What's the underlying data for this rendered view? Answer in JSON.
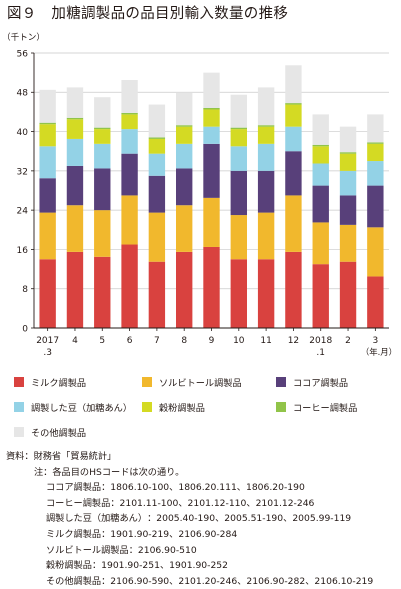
{
  "title": "図９　加糖調製品の品目別輸入数量の推移",
  "chart_data": {
    "type": "bar",
    "stacked": true,
    "unit_label": "（千トン）",
    "period_unit": "（年.月）",
    "ylim": [
      0,
      56
    ],
    "yticks": [
      0,
      8,
      16,
      24,
      32,
      40,
      48,
      56
    ],
    "grid": true,
    "legend_position": "bottom",
    "categories": [
      [
        "2017",
        ".3"
      ],
      [
        "4"
      ],
      [
        "5"
      ],
      [
        "6"
      ],
      [
        "7"
      ],
      [
        "8"
      ],
      [
        "9"
      ],
      [
        "10"
      ],
      [
        "11"
      ],
      [
        "12"
      ],
      [
        "2018",
        ".1"
      ],
      [
        "2"
      ],
      [
        "3"
      ]
    ],
    "series": [
      {
        "name": "ミルク調製品",
        "color": "#d9423f",
        "values": [
          14.0,
          15.5,
          14.5,
          17.0,
          13.5,
          15.5,
          16.5,
          14.0,
          14.0,
          15.5,
          13.0,
          13.5,
          10.5
        ]
      },
      {
        "name": "ソルビトール調製品",
        "color": "#f1b82d",
        "values": [
          9.5,
          9.5,
          9.5,
          10.0,
          10.0,
          9.5,
          10.0,
          9.0,
          9.5,
          11.5,
          8.5,
          7.5,
          10.0
        ]
      },
      {
        "name": "ココア調製品",
        "color": "#58407a",
        "values": [
          7.0,
          8.0,
          8.5,
          8.5,
          7.5,
          7.5,
          11.0,
          9.0,
          8.5,
          9.0,
          7.5,
          6.0,
          8.5
        ]
      },
      {
        "name": "調製した豆（加糖あん）",
        "color": "#93d2e6",
        "values": [
          6.5,
          5.5,
          5.0,
          5.0,
          4.5,
          5.0,
          3.5,
          5.0,
          5.5,
          5.0,
          4.5,
          5.0,
          5.0
        ]
      },
      {
        "name": "穀粉調製品",
        "color": "#d4da23",
        "values": [
          4.5,
          4.0,
          3.0,
          3.0,
          3.0,
          3.5,
          3.5,
          3.5,
          3.5,
          4.5,
          3.5,
          3.5,
          3.5
        ]
      },
      {
        "name": "コーヒー調製品",
        "color": "#91c449",
        "values": [
          0.3,
          0.3,
          0.3,
          0.3,
          0.3,
          0.3,
          0.3,
          0.3,
          0.3,
          0.3,
          0.3,
          0.3,
          0.3
        ]
      },
      {
        "name": "その他調製品",
        "color": "#e6e6e6",
        "values": [
          6.7,
          6.2,
          6.2,
          6.7,
          6.7,
          6.7,
          7.2,
          6.7,
          7.7,
          7.7,
          6.2,
          5.2,
          5.7
        ]
      }
    ]
  },
  "notes": {
    "source_label": "資料：",
    "source_text": "財務省「貿易統計」",
    "note_label": "注：",
    "note_intro": "各品目のHSコードは次の通り。",
    "codes": [
      {
        "label": "ココア調製品",
        "codes": "：1806.10-100、1806.20.111、1806.20-190"
      },
      {
        "label": "コーヒー調製品",
        "codes": "：2101.11-100、2101.12-110、2101.12-246"
      },
      {
        "label": "調製した豆（加糖あん）",
        "codes": "：2005.40-190、2005.51-190、2005.99-119"
      },
      {
        "label": "ミルク調製品",
        "codes": "：1901.90-219、2106.90-284"
      },
      {
        "label": "ソルビトール調製品",
        "codes": "：2106.90-510"
      },
      {
        "label": "穀粉調製品",
        "codes": "：1901.90-251、1901.90-252"
      },
      {
        "label": "その他調製品",
        "codes": "：2106.90-590、2101.20-246、2106.90-282、2106.10-219"
      }
    ]
  }
}
